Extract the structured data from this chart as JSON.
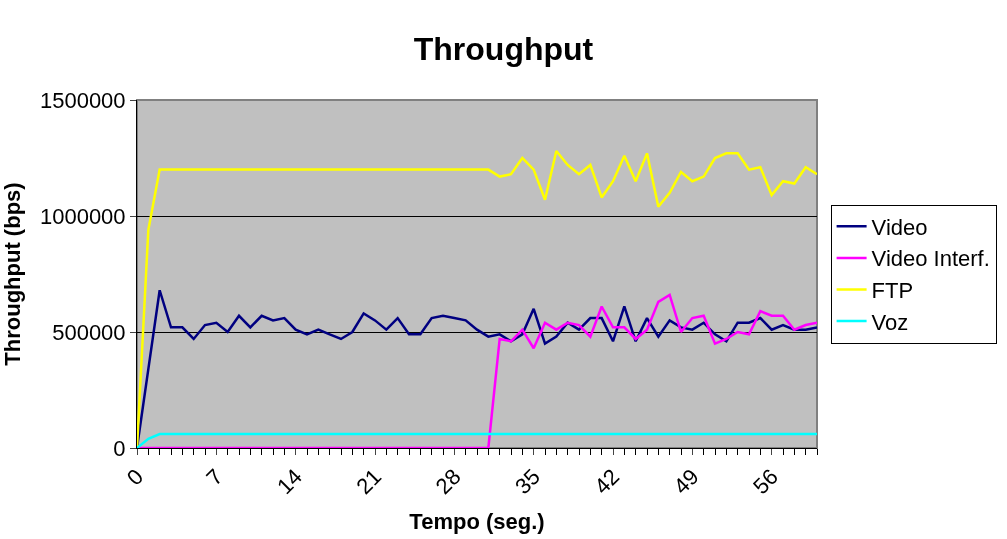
{
  "chart_data": {
    "type": "line",
    "title": "Throughput",
    "xlabel": "Tempo (seg.)",
    "ylabel": "Throughput (bps)",
    "x": [
      0,
      1,
      2,
      3,
      4,
      5,
      6,
      7,
      8,
      9,
      10,
      11,
      12,
      13,
      14,
      15,
      16,
      17,
      18,
      19,
      20,
      21,
      22,
      23,
      24,
      25,
      26,
      27,
      28,
      29,
      30,
      31,
      32,
      33,
      34,
      35,
      36,
      37,
      38,
      39,
      40,
      41,
      42,
      43,
      44,
      45,
      46,
      47,
      48,
      49,
      50,
      51,
      52,
      53,
      54,
      55,
      56,
      57,
      58,
      59,
      60
    ],
    "xlim": [
      0,
      60
    ],
    "xticks": [
      0,
      7,
      14,
      21,
      28,
      35,
      42,
      49,
      56
    ],
    "ylim": [
      0,
      1500000
    ],
    "yticks": [
      0,
      500000,
      1000000,
      1500000
    ],
    "grid": "y",
    "legend": "right",
    "marker": "none",
    "line_style": "solid",
    "series": [
      {
        "name": "Video",
        "color": "#000080",
        "values": [
          0,
          340000,
          680000,
          520000,
          520000,
          470000,
          530000,
          540000,
          500000,
          570000,
          520000,
          570000,
          550000,
          560000,
          510000,
          490000,
          510000,
          490000,
          470000,
          500000,
          580000,
          550000,
          510000,
          560000,
          490000,
          490000,
          560000,
          570000,
          560000,
          550000,
          510000,
          480000,
          490000,
          460000,
          490000,
          600000,
          450000,
          480000,
          540000,
          510000,
          560000,
          560000,
          460000,
          610000,
          460000,
          560000,
          480000,
          550000,
          520000,
          510000,
          540000,
          490000,
          460000,
          540000,
          540000,
          560000,
          510000,
          530000,
          510000,
          510000,
          520000
        ]
      },
      {
        "name": "Video Interf.",
        "color": "#ff00ff",
        "values": [
          0,
          0,
          0,
          0,
          0,
          0,
          0,
          0,
          0,
          0,
          0,
          0,
          0,
          0,
          0,
          0,
          0,
          0,
          0,
          0,
          0,
          0,
          0,
          0,
          0,
          0,
          0,
          0,
          0,
          0,
          0,
          0,
          470000,
          460000,
          510000,
          430000,
          540000,
          510000,
          540000,
          530000,
          480000,
          610000,
          520000,
          520000,
          470000,
          510000,
          630000,
          660000,
          500000,
          560000,
          570000,
          450000,
          470000,
          500000,
          490000,
          590000,
          570000,
          570000,
          510000,
          530000,
          540000
        ]
      },
      {
        "name": "FTP",
        "color": "#ffff00",
        "values": [
          0,
          940000,
          1200000,
          1200000,
          1200000,
          1200000,
          1200000,
          1200000,
          1200000,
          1200000,
          1200000,
          1200000,
          1200000,
          1200000,
          1200000,
          1200000,
          1200000,
          1200000,
          1200000,
          1200000,
          1200000,
          1200000,
          1200000,
          1200000,
          1200000,
          1200000,
          1200000,
          1200000,
          1200000,
          1200000,
          1200000,
          1200000,
          1170000,
          1180000,
          1250000,
          1200000,
          1070000,
          1280000,
          1220000,
          1180000,
          1220000,
          1080000,
          1150000,
          1260000,
          1150000,
          1270000,
          1040000,
          1100000,
          1190000,
          1150000,
          1170000,
          1250000,
          1270000,
          1270000,
          1200000,
          1210000,
          1090000,
          1150000,
          1140000,
          1210000,
          1180000
        ]
      },
      {
        "name": "Voz",
        "color": "#00ffff",
        "values": [
          0,
          40000,
          60000,
          60000,
          60000,
          60000,
          60000,
          60000,
          60000,
          60000,
          60000,
          60000,
          60000,
          60000,
          60000,
          60000,
          60000,
          60000,
          60000,
          60000,
          60000,
          60000,
          60000,
          60000,
          60000,
          60000,
          60000,
          60000,
          60000,
          60000,
          60000,
          60000,
          60000,
          60000,
          60000,
          60000,
          60000,
          60000,
          60000,
          60000,
          60000,
          60000,
          60000,
          60000,
          60000,
          60000,
          60000,
          60000,
          60000,
          60000,
          60000,
          60000,
          60000,
          60000,
          60000,
          60000,
          60000,
          60000,
          60000,
          60000,
          60000
        ]
      }
    ]
  }
}
